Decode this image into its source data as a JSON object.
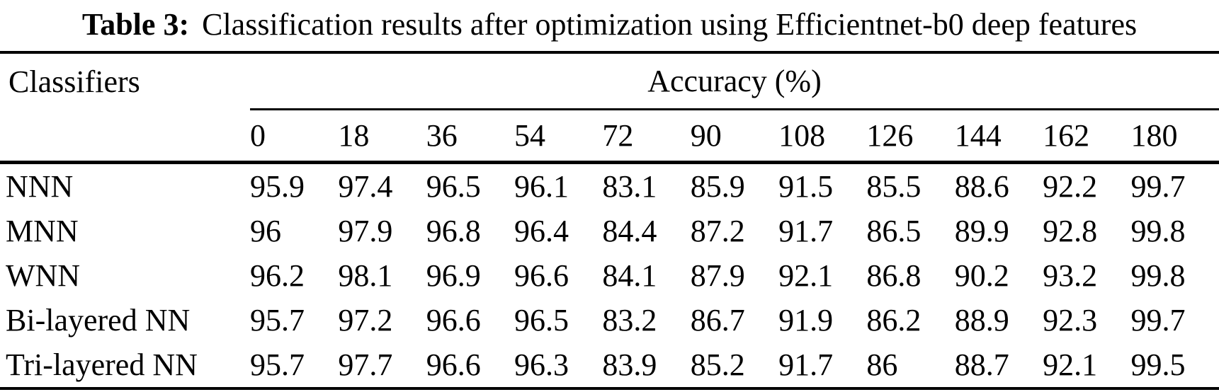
{
  "caption": {
    "label": "Table 3:",
    "text": "Classification results after optimization using Efficientnet-b0 deep features"
  },
  "table": {
    "classifiers_header": "Classifiers",
    "accuracy_header": "Accuracy (%)",
    "angle_columns": [
      "0",
      "18",
      "36",
      "54",
      "72",
      "90",
      "108",
      "126",
      "144",
      "162",
      "180"
    ],
    "rows": [
      {
        "classifier": "NNN",
        "values": [
          "95.9",
          "97.4",
          "96.5",
          "96.1",
          "83.1",
          "85.9",
          "91.5",
          "85.5",
          "88.6",
          "92.2",
          "99.7"
        ]
      },
      {
        "classifier": "MNN",
        "values": [
          "96",
          "97.9",
          "96.8",
          "96.4",
          "84.4",
          "87.2",
          "91.7",
          "86.5",
          "89.9",
          "92.8",
          "99.8"
        ]
      },
      {
        "classifier": "WNN",
        "values": [
          "96.2",
          "98.1",
          "96.9",
          "96.6",
          "84.1",
          "87.9",
          "92.1",
          "86.8",
          "90.2",
          "93.2",
          "99.8"
        ]
      },
      {
        "classifier": "Bi-layered NN",
        "values": [
          "95.7",
          "97.2",
          "96.6",
          "96.5",
          "83.2",
          "86.7",
          "91.9",
          "86.2",
          "88.9",
          "92.3",
          "99.7"
        ]
      },
      {
        "classifier": "Tri-layered NN",
        "values": [
          "95.7",
          "97.7",
          "96.6",
          "96.3",
          "83.9",
          "85.2",
          "91.7",
          "86",
          "88.7",
          "92.1",
          "99.5"
        ]
      }
    ]
  },
  "chart_data": {
    "type": "table",
    "title": "Table 3: Classification results after optimization using Efficientnet-b0 deep features",
    "group_header": "Accuracy (%)",
    "columns": [
      "Classifiers",
      "0",
      "18",
      "36",
      "54",
      "72",
      "90",
      "108",
      "126",
      "144",
      "162",
      "180"
    ],
    "rows": [
      [
        "NNN",
        95.9,
        97.4,
        96.5,
        96.1,
        83.1,
        85.9,
        91.5,
        85.5,
        88.6,
        92.2,
        99.7
      ],
      [
        "MNN",
        96,
        97.9,
        96.8,
        96.4,
        84.4,
        87.2,
        91.7,
        86.5,
        89.9,
        92.8,
        99.8
      ],
      [
        "WNN",
        96.2,
        98.1,
        96.9,
        96.6,
        84.1,
        87.9,
        92.1,
        86.8,
        90.2,
        93.2,
        99.8
      ],
      [
        "Bi-layered NN",
        95.7,
        97.2,
        96.6,
        96.5,
        83.2,
        86.7,
        91.9,
        86.2,
        88.9,
        92.3,
        99.7
      ],
      [
        "Tri-layered NN",
        95.7,
        97.7,
        96.6,
        96.3,
        83.9,
        85.2,
        91.7,
        86,
        88.7,
        92.1,
        99.5
      ]
    ]
  }
}
